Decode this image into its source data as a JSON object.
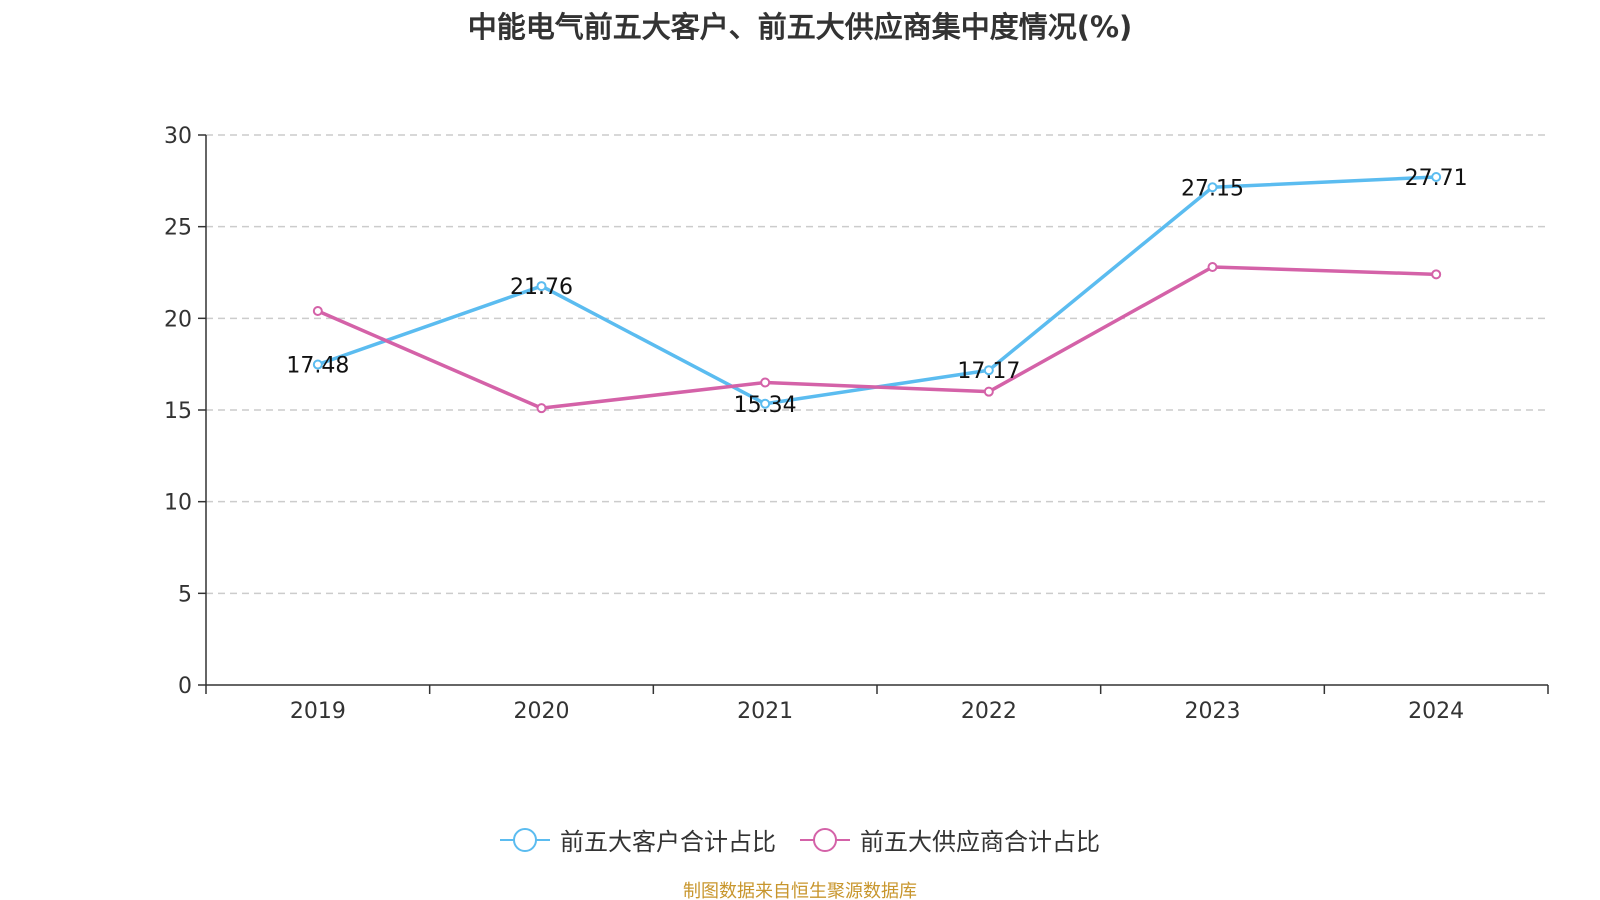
{
  "colors": {
    "series_customers": "#5bbcf0",
    "series_suppliers": "#d462a8",
    "grid": "#cccccc",
    "axis": "#333333",
    "source": "#c8962d"
  },
  "chart_data": {
    "type": "line",
    "title": "中能电气前五大客户、前五大供应商集中度情况(%)",
    "xlabel": "",
    "ylabel": "",
    "categories": [
      "2019",
      "2020",
      "2021",
      "2022",
      "2023",
      "2024"
    ],
    "ylim": [
      0,
      30
    ],
    "yticks": [
      0,
      5,
      10,
      15,
      20,
      25,
      30
    ],
    "grid": true,
    "legend_position": "bottom",
    "series": [
      {
        "name": "前五大客户合计占比",
        "values": [
          17.48,
          21.76,
          15.34,
          17.17,
          27.15,
          27.71
        ],
        "data_labels": [
          "17.48",
          "21.76",
          "15.34",
          "17.17",
          "27.15",
          "27.71"
        ],
        "color": "#5bbcf0"
      },
      {
        "name": "前五大供应商合计占比",
        "values": [
          20.4,
          15.1,
          16.5,
          16.0,
          22.8,
          22.4
        ],
        "color": "#d462a8"
      }
    ]
  },
  "source_note": "制图数据来自恒生聚源数据库"
}
